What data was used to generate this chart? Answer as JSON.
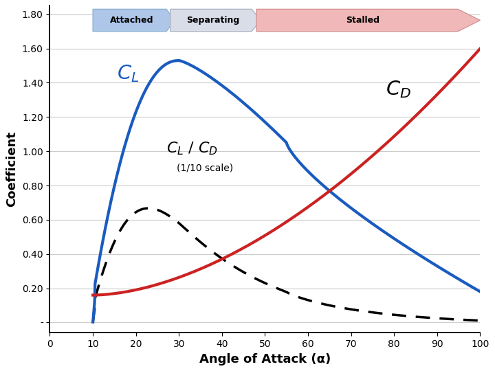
{
  "xlabel": "Angle of Attack (α)",
  "ylabel": "Coefficient",
  "xlim": [
    0,
    100
  ],
  "ylim": [
    -0.06,
    1.85
  ],
  "yticks": [
    0.0,
    0.2,
    0.4,
    0.6,
    0.8,
    1.0,
    1.2,
    1.4,
    1.6,
    1.8
  ],
  "ytick_labels": [
    "-",
    "0.20",
    "0.40",
    "0.60",
    "0.80",
    "1.00",
    "1.20",
    "1.40",
    "1.60",
    "1.80"
  ],
  "xticks": [
    0,
    10,
    20,
    30,
    40,
    50,
    60,
    70,
    80,
    90,
    100
  ],
  "bg_color": "#ffffff",
  "grid_color": "#cccccc",
  "cl_color": "#1a5bbf",
  "cd_color": "#cc2222",
  "ratio_color": "#000000",
  "chevron_attached_fill": "#aec6e8",
  "chevron_attached_edge": "#8ab0d0",
  "chevron_sep_fill": "#d8dde8",
  "chevron_sep_edge": "#aab0c0",
  "chevron_stalled_fill": "#f0b8b8",
  "chevron_stalled_edge": "#d09090"
}
